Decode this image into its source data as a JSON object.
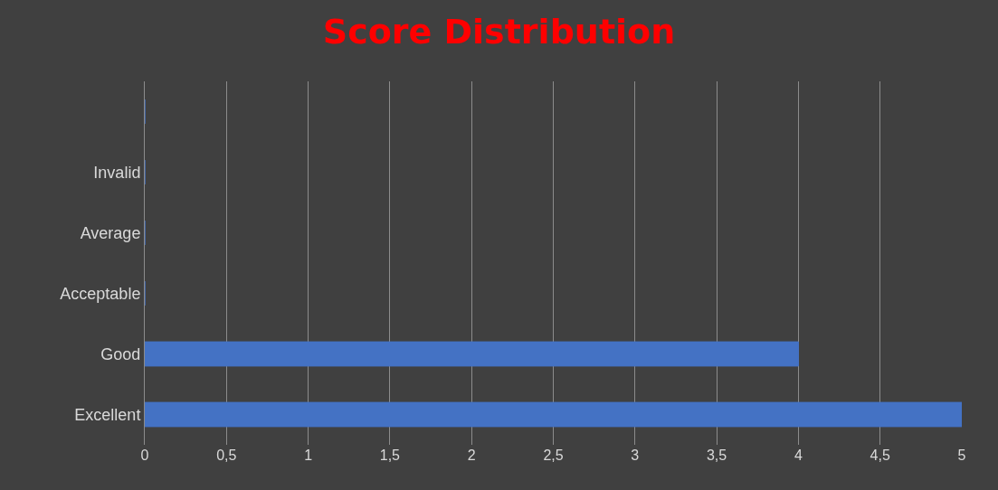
{
  "chart_data": {
    "type": "bar",
    "orientation": "horizontal",
    "title": "Score Distribution",
    "categories": [
      null,
      "Invalid",
      "Average",
      "Acceptable",
      "Good",
      "Excellent"
    ],
    "values": [
      0,
      0,
      0,
      0,
      4,
      5
    ],
    "color": "#4472c4",
    "xlim": [
      0,
      5
    ],
    "xticks": [
      0,
      {
        "value": 0.5,
        "label": "0,5"
      },
      1,
      {
        "value": 1.5,
        "label": "1,5"
      },
      2,
      {
        "value": 2.5,
        "label": "2,5"
      },
      3,
      {
        "value": 3.5,
        "label": "3,5"
      },
      4,
      {
        "value": 4.5,
        "label": "4,5"
      },
      5
    ],
    "grid": "x"
  }
}
